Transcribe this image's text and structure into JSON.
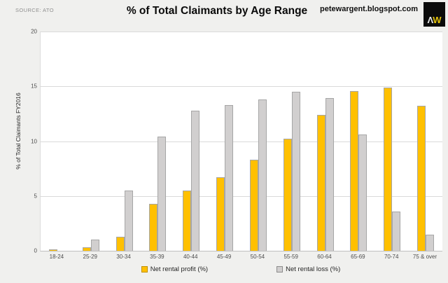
{
  "header": {
    "source_label": "SOURCE: ATO",
    "site_label": "petewargent.blogspot.com",
    "logo_letter_a": "Λ",
    "logo_letter_w": "W"
  },
  "chart_data": {
    "type": "bar",
    "title": "% of Total Claimants by Age Range",
    "ylabel": "% of Total Claimants FY2016",
    "xlabel": "",
    "ylim": [
      0,
      20
    ],
    "yticks": [
      0,
      5,
      10,
      15,
      20
    ],
    "grid": true,
    "legend_position": "bottom",
    "categories": [
      "18-24",
      "25-29",
      "30-34",
      "35-39",
      "40-44",
      "45-49",
      "50-54",
      "55-59",
      "60-64",
      "65-69",
      "70-74",
      "75 & over"
    ],
    "series": [
      {
        "name": "Net rental profit (%)",
        "color": "#FFC000",
        "values": [
          0.1,
          0.3,
          1.3,
          4.3,
          5.5,
          6.7,
          8.3,
          10.2,
          12.4,
          14.6,
          14.9,
          13.2
        ]
      },
      {
        "name": "Net rental loss (%)",
        "color": "#D1CFCF",
        "values": [
          0.0,
          1.0,
          5.5,
          10.4,
          12.8,
          13.3,
          13.8,
          14.5,
          13.9,
          10.6,
          3.6,
          1.5
        ]
      }
    ]
  },
  "colors": {
    "background": "#F0F0EE",
    "plot_background": "#FFFFFF",
    "gridline": "#D9D9D9",
    "axis_line": "#BFBFBF",
    "bar_border": "#A6A6A6",
    "profit_bar": "#FFC000",
    "loss_bar": "#D1CFCF",
    "logo_background": "#0B0B0B",
    "logo_w": "#E2C10B"
  }
}
